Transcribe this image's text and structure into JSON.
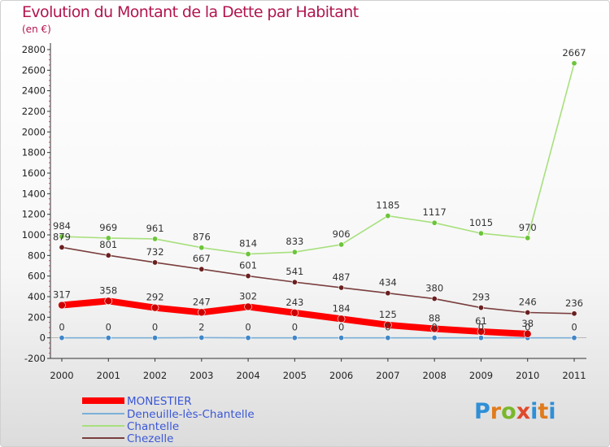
{
  "chart_data": {
    "type": "line",
    "title": "Evolution du Montant de la Dette par Habitant",
    "subtitle": "(en €)",
    "x": [
      "2000",
      "2001",
      "2002",
      "2003",
      "2004",
      "2005",
      "2006",
      "2007",
      "2008",
      "2009",
      "2010",
      "2011"
    ],
    "ylim": [
      -200,
      2800
    ],
    "yticks": [
      -200,
      0,
      200,
      400,
      600,
      800,
      1000,
      1200,
      1400,
      1600,
      1800,
      2000,
      2200,
      2400,
      2600,
      2800
    ],
    "grid": false,
    "legend_position": "bottom-left",
    "series": [
      {
        "name": "MONESTIER",
        "color": "#ff0000",
        "marker": "#cc0000",
        "values": [
          317,
          358,
          292,
          247,
          302,
          243,
          184,
          125,
          88,
          61,
          38,
          null
        ]
      },
      {
        "name": "Deneuille-lès-Chantelle",
        "color": "#7bafd8",
        "marker": "#3f86c8",
        "values": [
          0,
          0,
          0,
          2,
          0,
          0,
          0,
          0,
          0,
          0,
          0,
          0
        ]
      },
      {
        "name": "Chantelle",
        "color": "#a8e07d",
        "marker": "#6cc43a",
        "values": [
          984,
          969,
          961,
          876,
          814,
          833,
          906,
          1185,
          1117,
          1015,
          970,
          2667
        ]
      },
      {
        "name": "Chezelle",
        "color": "#7a3e3e",
        "marker": "#6a1f1f",
        "values": [
          879,
          801,
          732,
          667,
          601,
          541,
          487,
          434,
          380,
          293,
          246,
          236
        ]
      }
    ]
  },
  "logo": {
    "p": "P",
    "r": "r",
    "o": "o",
    "x": "x",
    "i": "i",
    "t": "t",
    "i2": "i"
  }
}
